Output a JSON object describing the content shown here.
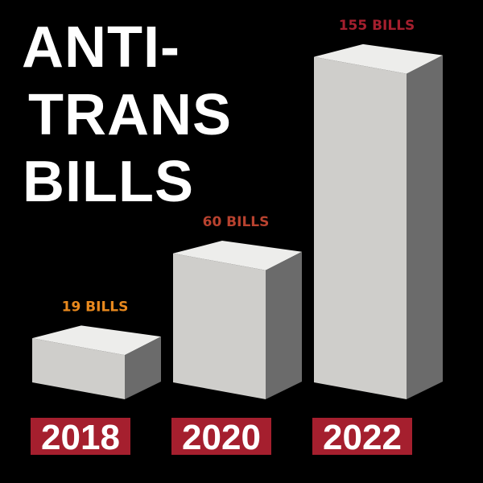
{
  "chart_data": {
    "type": "bar",
    "title_lines": [
      "ANTI-",
      "TRANS",
      "BILLS"
    ],
    "categories": [
      "2018",
      "2020",
      "2022"
    ],
    "values": [
      19,
      60,
      155
    ],
    "data_labels": [
      "19 BILLS",
      "60 BILLS",
      "155 BILLS"
    ],
    "label_colors": [
      "#e8891e",
      "#b8422f",
      "#a51f2e"
    ],
    "category_bg_color": "#a51f2e",
    "bar_colors": {
      "front": "#cfcecb",
      "top": "#ededeb",
      "side": "#6b6b6b"
    },
    "background": "#000000",
    "xlabel": "",
    "ylabel": "",
    "grid": false,
    "legend": "none"
  }
}
